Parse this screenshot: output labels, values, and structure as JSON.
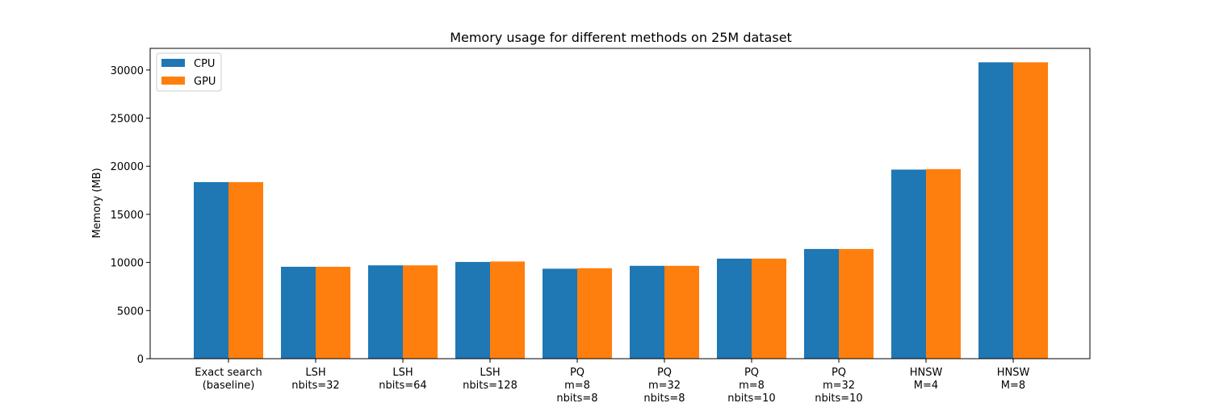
{
  "chart_data": {
    "type": "bar",
    "title": "Memory usage for different methods on 25M dataset",
    "xlabel": "",
    "ylabel": "Memory (MB)",
    "ylim": [
      0,
      32250
    ],
    "yticks": [
      0,
      5000,
      10000,
      15000,
      20000,
      25000,
      30000
    ],
    "grid": false,
    "legend_position": "top-left",
    "categories": [
      [
        "Exact search",
        "(baseline)"
      ],
      [
        "LSH",
        "nbits=32"
      ],
      [
        "LSH",
        "nbits=64"
      ],
      [
        "LSH",
        "nbits=128"
      ],
      [
        "PQ",
        "m=8",
        "nbits=8"
      ],
      [
        "PQ",
        "m=32",
        "nbits=8"
      ],
      [
        "PQ",
        "m=8",
        "nbits=10"
      ],
      [
        "PQ",
        "m=32",
        "nbits=10"
      ],
      [
        "HNSW",
        "M=4"
      ],
      [
        "HNSW",
        "M=8"
      ]
    ],
    "series": [
      {
        "name": "CPU",
        "color": "#1f77b4",
        "values": [
          18350,
          9550,
          9700,
          10050,
          9350,
          9650,
          10400,
          11400,
          19650,
          30800
        ]
      },
      {
        "name": "GPU",
        "color": "#ff7f0e",
        "values": [
          18350,
          9550,
          9700,
          10100,
          9400,
          9650,
          10400,
          11400,
          19700,
          30800
        ]
      }
    ]
  }
}
